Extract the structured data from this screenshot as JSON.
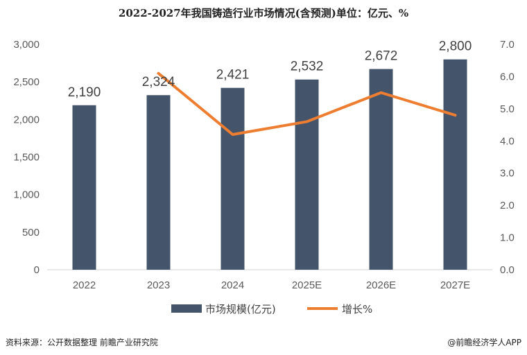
{
  "chart_data": {
    "type": "bar+line",
    "title": "2022-2027年我国铸造行业市场情况(含预测)单位：亿元、%",
    "categories": [
      "2022",
      "2023",
      "2024",
      "2025E",
      "2026E",
      "2027E"
    ],
    "series": [
      {
        "name": "市场规模(亿元)",
        "type": "bar",
        "axis": "left",
        "values": [
          2190,
          2324,
          2421,
          2532,
          2672,
          2800
        ],
        "data_labels": [
          "2,190",
          "2,324",
          "2,421",
          "2,532",
          "2,672",
          "2,800"
        ],
        "color": "#44546a"
      },
      {
        "name": "增长%",
        "type": "line",
        "axis": "right",
        "values": [
          null,
          6.1,
          4.2,
          4.6,
          5.5,
          4.8
        ],
        "color": "#ed7d31"
      }
    ],
    "y_left": {
      "min": 0,
      "max": 3000,
      "ticks": [
        "0",
        "500",
        "1,000",
        "1,500",
        "2,000",
        "2,500",
        "3,000"
      ]
    },
    "y_right": {
      "min": 0,
      "max": 7,
      "ticks": [
        "0.0",
        "1.0",
        "2.0",
        "3.0",
        "4.0",
        "5.0",
        "6.0",
        "7.0"
      ]
    },
    "legend": [
      "市场规模(亿元)",
      "增长%"
    ],
    "legend_position": "bottom",
    "grid": false
  },
  "footer": {
    "source": "资料来源：公开数据整理 前瞻产业研究院",
    "brand": "@前瞻经济学人APP"
  }
}
